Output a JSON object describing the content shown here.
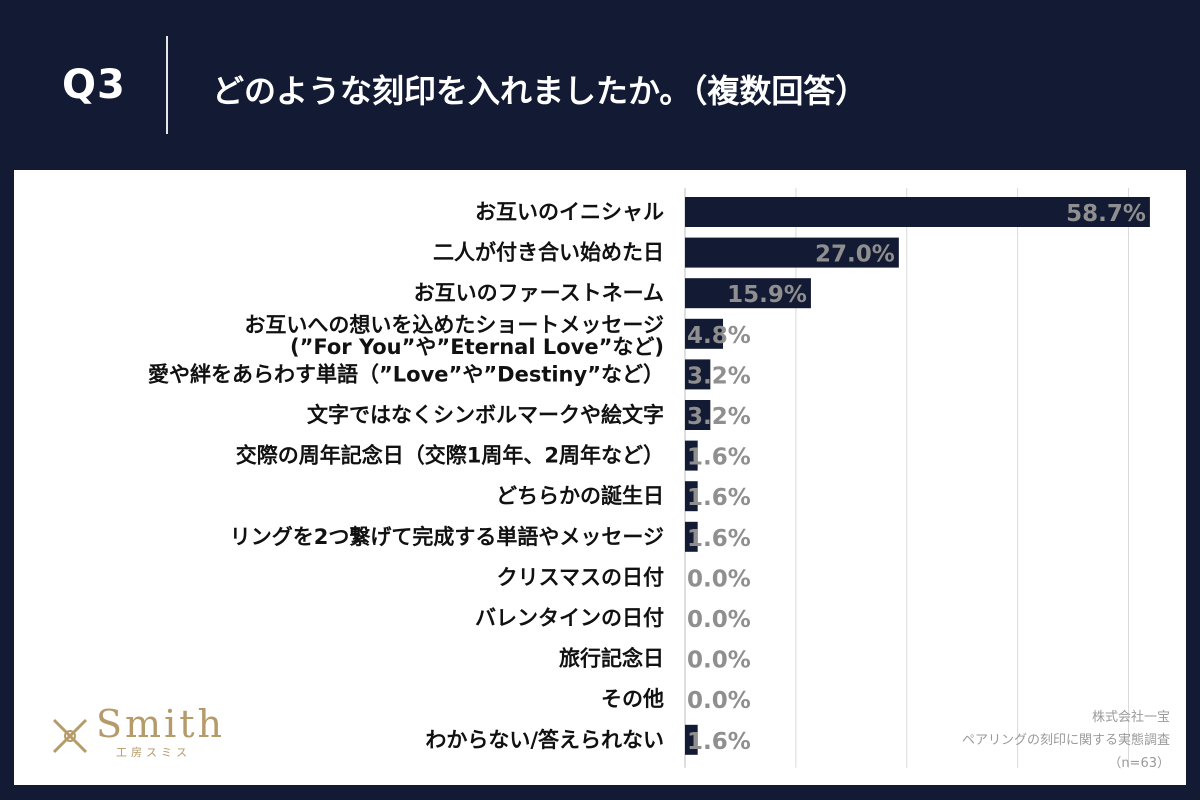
{
  "header": {
    "question": "Q3",
    "title": "どのような刻印を入れましたか。（複数回答）"
  },
  "chart_data": {
    "type": "bar",
    "orientation": "horizontal",
    "title": "どのような刻印を入れましたか。（複数回答）",
    "unit": "%",
    "xlim": [
      0,
      70
    ],
    "grid": true,
    "categories": [
      [
        "お互いのイニシャル"
      ],
      [
        "二人が付き合い始めた日"
      ],
      [
        "お互いのファーストネーム"
      ],
      [
        "お互いへの想いを込めたショートメッセージ",
        "(”For You”や”Eternal Love”など)"
      ],
      [
        "愛や絆をあらわす単語（”Love”や”Destiny”など）"
      ],
      [
        "文字ではなくシンボルマークや絵文字"
      ],
      [
        "交際の周年記念日（交際1周年、2周年など）"
      ],
      [
        "どちらかの誕生日"
      ],
      [
        "リングを2つ繋げて完成する単語やメッセージ"
      ],
      [
        "クリスマスの日付"
      ],
      [
        "バレンタインの日付"
      ],
      [
        "旅行記念日"
      ],
      [
        "その他"
      ],
      [
        "わからない/答えられない"
      ]
    ],
    "values": [
      58.7,
      27.0,
      15.9,
      4.8,
      3.2,
      3.2,
      1.6,
      1.6,
      1.6,
      0.0,
      0.0,
      0.0,
      0.0,
      1.6
    ],
    "value_labels": [
      "58.7%",
      "27.0%",
      "15.9%",
      "4.8%",
      "3.2%",
      "3.2%",
      "1.6%",
      "1.6%",
      "1.6%",
      "0.0%",
      "0.0%",
      "0.0%",
      "0.0%",
      "1.6%"
    ]
  },
  "source": {
    "company": "株式会社一宝",
    "survey": "ペアリングの刻印に関する実態調査",
    "sample": "（n=63）"
  },
  "logo": {
    "name": "Smith",
    "sub": "工房スミス"
  },
  "colors": {
    "background": "#131a33",
    "bar": "#131a33",
    "value_label": "#8f8f8f",
    "grid": "#d9d9d9",
    "logo": "#b59a6a"
  }
}
